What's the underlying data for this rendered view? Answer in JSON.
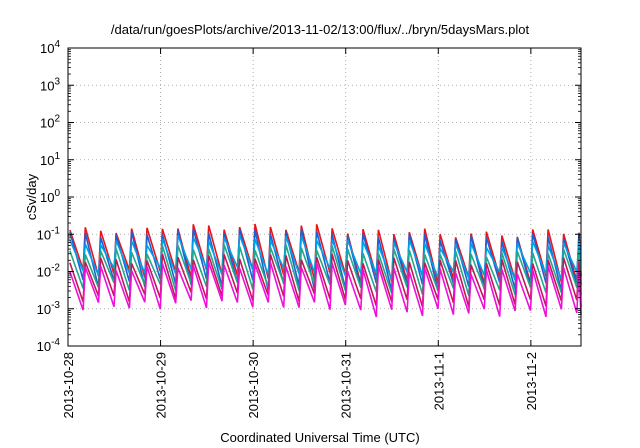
{
  "chart_data": {
    "type": "line",
    "title": "/data/run/goesPlots/archive/2013-11-02/13:00/flux/../bryn/5daysMars.plot",
    "xlabel": "Coordinated Universal Time (UTC)",
    "ylabel": "cSv/day",
    "y_scale": "log",
    "ylim": [
      0.0001,
      10000
    ],
    "y_ticks": [
      {
        "value": 0.0001,
        "base": "10",
        "exp": "-4"
      },
      {
        "value": 0.001,
        "base": "10",
        "exp": "-3"
      },
      {
        "value": 0.01,
        "base": "10",
        "exp": "-2"
      },
      {
        "value": 0.1,
        "base": "10",
        "exp": "-1"
      },
      {
        "value": 1,
        "base": "10",
        "exp": "0"
      },
      {
        "value": 10,
        "base": "10",
        "exp": "1"
      },
      {
        "value": 100,
        "base": "10",
        "exp": "2"
      },
      {
        "value": 1000,
        "base": "10",
        "exp": "3"
      },
      {
        "value": 10000,
        "base": "10",
        "exp": "4"
      }
    ],
    "xlim": [
      "2013-10-28T00:00",
      "2013-11-02T13:00"
    ],
    "x_ticks": [
      "2013-10-28",
      "2013-10-29",
      "2013-10-30",
      "2013-10-31",
      "2013-11-1",
      "2013-11-2"
    ],
    "grid": true,
    "legend": "none",
    "period_hours": 4,
    "series": [
      {
        "color": "#e8141e",
        "peak_day": [
          0.13,
          0.16,
          0.16,
          0.12,
          0.1,
          0.12
        ],
        "trough_day": [
          0.009,
          0.009,
          0.008,
          0.006,
          0.006,
          0.006
        ]
      },
      {
        "color": "#1f5fd4",
        "peak_day": [
          0.1,
          0.12,
          0.12,
          0.09,
          0.08,
          0.09
        ],
        "trough_day": [
          0.005,
          0.005,
          0.004,
          0.004,
          0.004,
          0.004
        ]
      },
      {
        "color": "#00a0e8",
        "peak_day": [
          0.06,
          0.08,
          0.08,
          0.06,
          0.05,
          0.06
        ],
        "trough_day": [
          0.01,
          0.011,
          0.01,
          0.008,
          0.008,
          0.008
        ]
      },
      {
        "color": "#23a88a",
        "peak_day": [
          0.035,
          0.045,
          0.045,
          0.035,
          0.03,
          0.035
        ],
        "trough_day": [
          0.004,
          0.004,
          0.004,
          0.003,
          0.003,
          0.003
        ]
      },
      {
        "color": "#c2185b",
        "peak_day": [
          0.02,
          0.025,
          0.025,
          0.02,
          0.018,
          0.02
        ],
        "trough_day": [
          0.002,
          0.0022,
          0.002,
          0.0015,
          0.0014,
          0.0015
        ]
      },
      {
        "color": "#ee10d8",
        "peak_day": [
          0.012,
          0.015,
          0.015,
          0.012,
          0.01,
          0.012
        ],
        "trough_day": [
          0.0012,
          0.0014,
          0.0012,
          0.0008,
          0.0008,
          0.0008
        ]
      }
    ]
  }
}
